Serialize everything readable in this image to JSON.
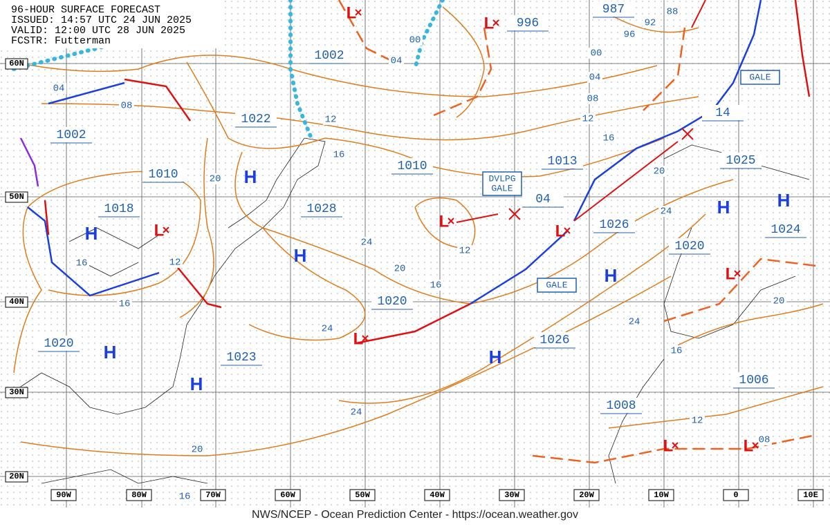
{
  "header": {
    "lines": [
      "96-HOUR SURFACE FORECAST",
      "ISSUED: 14:57 UTC 24 JUN 2025",
      "VALID:  12:00 UTC 28 JUN 2025",
      "FCSTR:  Futterman"
    ]
  },
  "lat_labels": [
    "60N",
    "50N",
    "40N",
    "30N",
    "20N"
  ],
  "lon_labels": [
    "90W",
    "80W",
    "70W",
    "60W",
    "50W",
    "40W",
    "30W",
    "20W",
    "10W",
    "0",
    "10E"
  ],
  "center_pressures": [
    "1002",
    "996",
    "987",
    "1002",
    "1022",
    "1010",
    "1018",
    "1010",
    "1013",
    "1028",
    "04",
    "1025",
    "1024",
    "1026",
    "1020",
    "1020",
    "1020",
    "1026",
    "1023",
    "1006",
    "1008",
    "14"
  ],
  "isobar_labels": [
    "00",
    "04",
    "92",
    "96",
    "88",
    "00",
    "04",
    "08",
    "12",
    "16",
    "20",
    "24",
    "04",
    "08",
    "12",
    "16",
    "20",
    "24",
    "20",
    "16",
    "12",
    "16",
    "12",
    "16",
    "24",
    "24",
    "16",
    "24",
    "20",
    "16",
    "12",
    "08",
    "20"
  ],
  "highs": [
    "H",
    "H",
    "H",
    "H",
    "H",
    "H",
    "H",
    "H",
    "H"
  ],
  "lows": [
    "L",
    "L",
    "L",
    "L",
    "L",
    "L",
    "L",
    "L",
    "L"
  ],
  "warnings": [
    [
      "DVLPG",
      "GALE"
    ],
    [
      "GALE"
    ],
    [
      "GALE"
    ]
  ],
  "footer": "NWS/NCEP - Ocean Prediction Center - https://ocean.weather.gov"
}
